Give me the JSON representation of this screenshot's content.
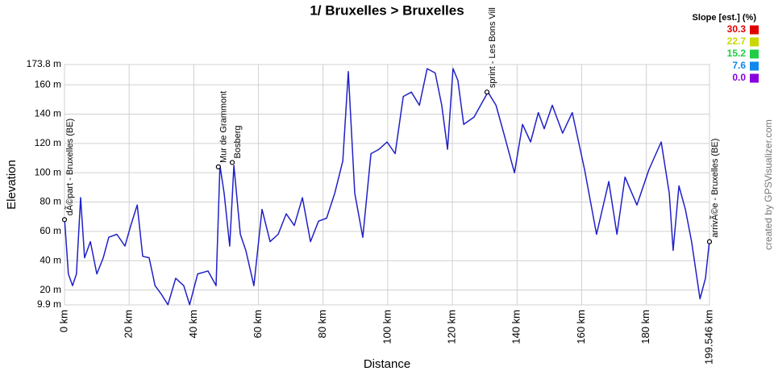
{
  "chart_data": {
    "type": "line",
    "title": "1/ Bruxelles > Bruxelles",
    "xlabel": "Distance",
    "ylabel": "Elevation",
    "credit": "created by GPSVisualizer.com",
    "xlim": [
      0,
      199.546
    ],
    "ylim": [
      9.9,
      173.8
    ],
    "grid": true,
    "xticks": [
      {
        "value": 0,
        "label": "0 km"
      },
      {
        "value": 20,
        "label": "20 km"
      },
      {
        "value": 40,
        "label": "40 km"
      },
      {
        "value": 60,
        "label": "60 km"
      },
      {
        "value": 80,
        "label": "80 km"
      },
      {
        "value": 100,
        "label": "100 km"
      },
      {
        "value": 120,
        "label": "120 km"
      },
      {
        "value": 140,
        "label": "140 km"
      },
      {
        "value": 160,
        "label": "160 km"
      },
      {
        "value": 180,
        "label": "180 km"
      },
      {
        "value": 199.546,
        "label": "199.546 km"
      }
    ],
    "yticks": [
      {
        "value": 9.9,
        "label": "9.9 m"
      },
      {
        "value": 20,
        "label": "20 m"
      },
      {
        "value": 40,
        "label": "40 m"
      },
      {
        "value": 60,
        "label": "60 m"
      },
      {
        "value": 80,
        "label": "80 m"
      },
      {
        "value": 100,
        "label": "100 m"
      },
      {
        "value": 120,
        "label": "120 m"
      },
      {
        "value": 140,
        "label": "140 m"
      },
      {
        "value": 160,
        "label": "160 m"
      },
      {
        "value": 173.8,
        "label": "173.8 m"
      }
    ],
    "series": [
      {
        "name": "Elevation",
        "color": "#2020c8",
        "x": [
          0,
          1.2,
          2.5,
          3.7,
          5,
          6.2,
          8,
          10,
          12,
          13.7,
          16.2,
          18.7,
          20.5,
          22.5,
          24.2,
          26.2,
          28,
          30,
          32,
          34.4,
          36.9,
          38.7,
          41.2,
          44.4,
          46.9,
          48.1,
          49.4,
          51.1,
          52.4,
          54.4,
          56.1,
          58.6,
          61.1,
          63.6,
          66.1,
          68.6,
          71.1,
          73.6,
          76.1,
          78.6,
          81.1,
          83.6,
          86.1,
          87.8,
          89.8,
          92.3,
          94.8,
          97.3,
          99.8,
          102.3,
          104.8,
          107.3,
          109.8,
          112.2,
          114.7,
          116.7,
          118.5,
          120.2,
          121.7,
          123.5,
          126.7,
          131,
          133.5,
          135.9,
          139.2,
          141.7,
          144.2,
          146.6,
          148.4,
          150.9,
          154.1,
          157.1,
          160.9,
          164.6,
          168.4,
          170.9,
          173.4,
          177.1,
          180.8,
          184.6,
          187.1,
          188.3,
          190.1,
          192.1,
          194,
          196.6,
          198.3,
          199.546
        ],
        "values": [
          69,
          31,
          23,
          31,
          83,
          42,
          53,
          31,
          42,
          56,
          58,
          50,
          64,
          78,
          43,
          42,
          23,
          17,
          10,
          28,
          23,
          10,
          31,
          33,
          23,
          105,
          86,
          50,
          105,
          58,
          47,
          23,
          75,
          53,
          58,
          72,
          64,
          83,
          53,
          67,
          69,
          86,
          108,
          169,
          86,
          56,
          113,
          116,
          121,
          113,
          152,
          155,
          146,
          171,
          168,
          146,
          116,
          171,
          163,
          133,
          138,
          155,
          146,
          127,
          100,
          133,
          121,
          141,
          130,
          146,
          127,
          141,
          102,
          58,
          94,
          58,
          97,
          78,
          102,
          121,
          86,
          47,
          91,
          75,
          53,
          14,
          28,
          54
        ]
      }
    ],
    "annotations": [
      {
        "text": "dÃ©part - Bruxelles (BE)",
        "x": 0,
        "y": 68
      },
      {
        "text": "Mur de Grammont",
        "x": 47.6,
        "y": 104
      },
      {
        "text": "Bosberg",
        "x": 51.9,
        "y": 107
      },
      {
        "text": "sprint - Les Bons Vill",
        "x": 130.7,
        "y": 155
      },
      {
        "text": "arrivÃ©e - Bruxelles (BE)",
        "x": 199.546,
        "y": 53
      }
    ],
    "legend": {
      "title": "Slope [est.] (%)",
      "values": [
        30.3,
        22.7,
        15.2,
        7.6,
        {
          "value": 0,
          "label": "0.0"
        }
      ],
      "colors": [
        "#e00000",
        "#c8d800",
        "#22cc44",
        "#1188ee",
        "#8800dd"
      ]
    }
  }
}
